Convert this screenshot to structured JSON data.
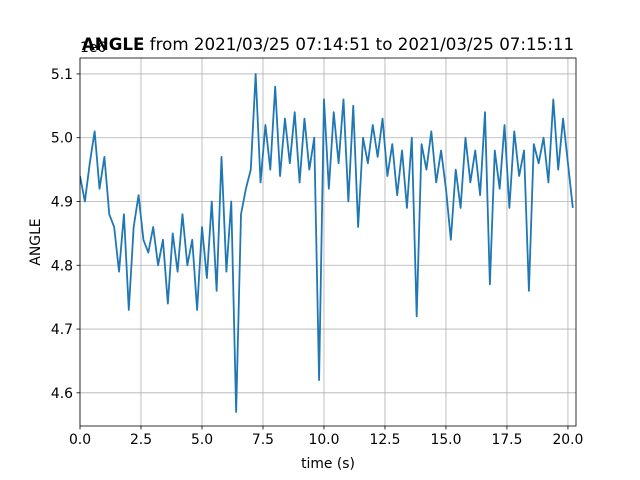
{
  "chart_data": {
    "type": "line",
    "title": {
      "bold": "ANGLE",
      "rest": " from 2021/03/25 07:14:51 to 2021/03/25 07:15:11"
    },
    "y_offset": "1e6",
    "x_label": "time (s)",
    "y_label": "ANGLE",
    "xlim": [
      0,
      20.33
    ],
    "ylim": [
      4.548,
      5.125
    ],
    "xticks": [
      {
        "value": 0,
        "label": "0.0"
      },
      2.5,
      {
        "value": 5,
        "label": "5.0"
      },
      7.5,
      {
        "value": 10,
        "label": "10.0"
      },
      12.5,
      {
        "value": 15,
        "label": "15.0"
      },
      17.5,
      {
        "value": 20,
        "label": "20.0"
      }
    ],
    "yticks": [
      4.6,
      4.7,
      4.8,
      4.9,
      {
        "value": 5,
        "label": "5.0"
      },
      5.1
    ],
    "grid": true,
    "x": [
      0,
      0.2,
      0.4,
      0.6,
      0.8,
      1,
      1.2,
      1.4,
      1.6,
      1.8,
      2,
      2.2,
      2.4,
      2.6,
      2.8,
      3,
      3.2,
      3.4,
      3.6,
      3.8,
      4,
      4.2,
      4.4,
      4.6,
      4.8,
      5,
      5.2,
      5.4,
      5.6,
      5.8,
      6,
      6.2,
      6.4,
      6.6,
      6.8,
      7,
      7.2,
      7.4,
      7.6,
      7.8,
      8,
      8.2,
      8.4,
      8.6,
      8.8,
      9,
      9.2,
      9.4,
      9.6,
      9.8,
      10,
      10.2,
      10.4,
      10.6,
      10.8,
      11,
      11.2,
      11.4,
      11.6,
      11.8,
      12,
      12.2,
      12.4,
      12.6,
      12.8,
      13,
      13.2,
      13.4,
      13.6,
      13.8,
      14,
      14.2,
      14.4,
      14.6,
      14.8,
      15,
      15.2,
      15.4,
      15.6,
      15.8,
      16,
      16.2,
      16.4,
      16.6,
      16.8,
      17,
      17.2,
      17.4,
      17.6,
      17.8,
      18,
      18.2,
      18.4,
      18.6,
      18.8,
      19,
      19.2,
      19.4,
      19.6,
      19.8,
      20,
      20.2
    ],
    "series": [
      {
        "name": "ANGLE",
        "color": "#1f77b4",
        "values": [
          4.94,
          4.9,
          4.96,
          5.01,
          4.92,
          4.97,
          4.88,
          4.86,
          4.79,
          4.88,
          4.73,
          4.86,
          4.91,
          4.84,
          4.82,
          4.86,
          4.8,
          4.84,
          4.74,
          4.85,
          4.79,
          4.88,
          4.8,
          4.84,
          4.73,
          4.86,
          4.78,
          4.9,
          4.76,
          4.97,
          4.79,
          4.9,
          4.57,
          4.88,
          4.92,
          4.95,
          5.1,
          4.93,
          5.02,
          4.95,
          5.08,
          4.94,
          5.03,
          4.96,
          5.04,
          4.93,
          5.03,
          4.95,
          5.0,
          4.62,
          5.06,
          4.92,
          5.04,
          4.96,
          5.06,
          4.9,
          5.05,
          4.86,
          5.0,
          4.96,
          5.02,
          4.97,
          5.03,
          4.94,
          4.99,
          4.91,
          4.98,
          4.89,
          5.0,
          4.72,
          4.99,
          4.95,
          5.01,
          4.93,
          4.98,
          4.92,
          4.84,
          4.95,
          4.89,
          5.0,
          4.93,
          4.98,
          4.91,
          5.04,
          4.77,
          4.98,
          4.92,
          5.02,
          4.89,
          5.01,
          4.94,
          4.98,
          4.76,
          4.99,
          4.96,
          5.0,
          4.93,
          5.06,
          4.95,
          5.03,
          4.96,
          4.89
        ]
      }
    ]
  }
}
